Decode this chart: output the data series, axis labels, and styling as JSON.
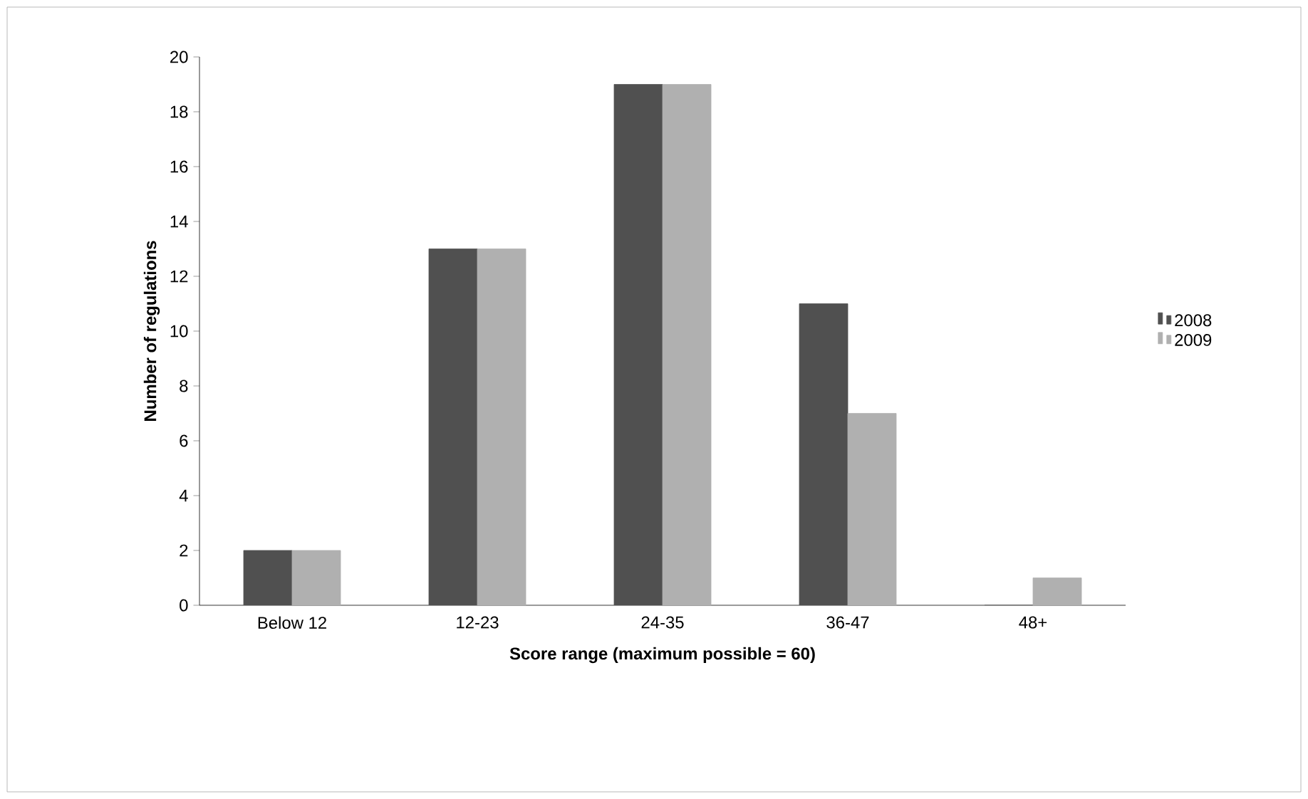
{
  "chart_data": {
    "type": "bar",
    "xlabel": "Score range (maximum possible = 60)",
    "ylabel": "Number of regulations",
    "categories": [
      "Below 12",
      "12-23",
      "24-35",
      "36-47",
      "48+"
    ],
    "series": [
      {
        "name": "2008",
        "color": "#505050",
        "values": [
          2,
          13,
          19,
          11,
          0
        ]
      },
      {
        "name": "2009",
        "color": "#b0b0b0",
        "values": [
          2,
          13,
          19,
          7,
          1
        ]
      }
    ],
    "ylim": [
      0,
      20
    ],
    "yticks": [
      0,
      2,
      4,
      6,
      8,
      10,
      12,
      14,
      16,
      18,
      20
    ],
    "legend": "right",
    "grid": false
  }
}
